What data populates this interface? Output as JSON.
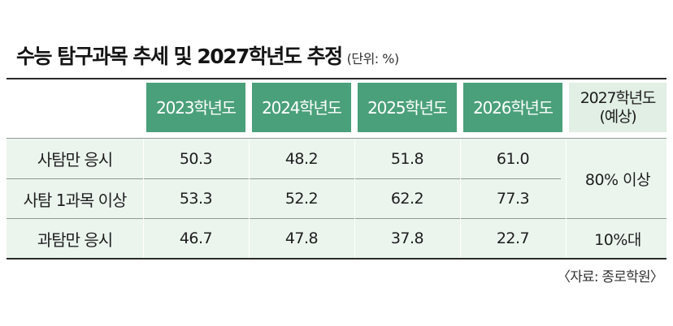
{
  "title": "수능 탐구과목 추세 및 2027학년도 추정",
  "unit": "(단위: %)",
  "source": "〈자료: 종로학원〉",
  "colors": {
    "header_green": "#4aa07a",
    "estimate_header": "#e1efe5",
    "row_background": "#ebf5ee"
  },
  "chart_data": {
    "type": "table",
    "columns": [
      "2023학년도",
      "2024학년도",
      "2025학년도",
      "2026학년도"
    ],
    "estimate_column": {
      "line1": "2027학년도",
      "line2": "(예상)"
    },
    "rows": [
      {
        "label": "사탐만 응시",
        "values": [
          "50.3",
          "48.2",
          "51.8",
          "61.0"
        ]
      },
      {
        "label": "사탐 1과목 이상",
        "values": [
          "53.3",
          "52.2",
          "62.2",
          "77.3"
        ]
      },
      {
        "label": "과탐만 응시",
        "values": [
          "46.7",
          "47.8",
          "37.8",
          "22.7"
        ]
      }
    ],
    "estimates": {
      "social_combined": "80% 이상",
      "science_only": "10%대"
    }
  }
}
